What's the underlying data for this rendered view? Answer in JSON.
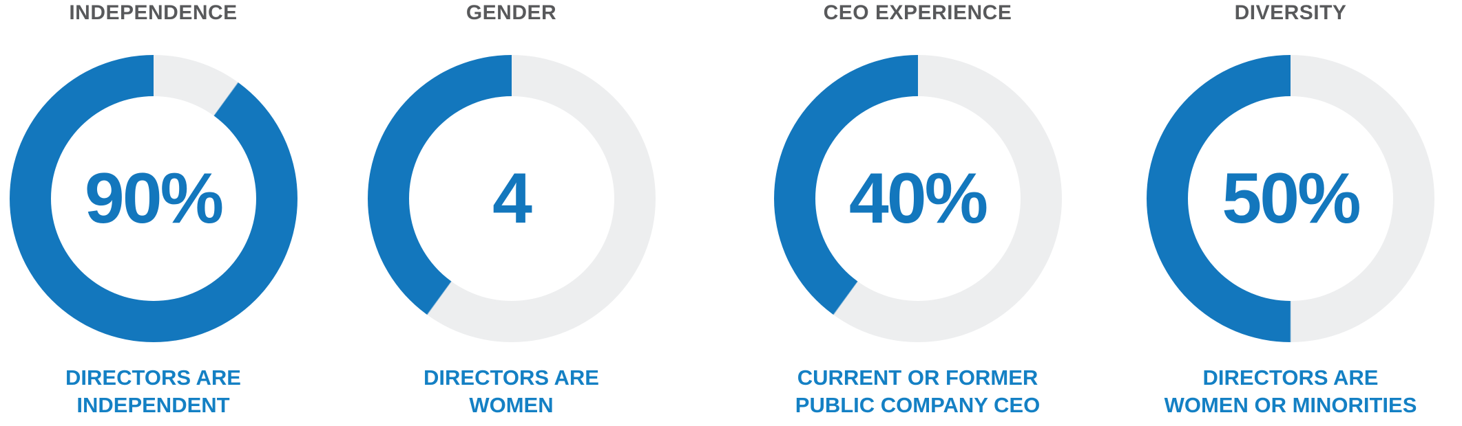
{
  "colors": {
    "blue": "#1377BD",
    "caption_blue": "#1480C4",
    "track": "#EDEEEF",
    "title_gray": "#58595B",
    "background": "#FFFFFF"
  },
  "cards": [
    {
      "title": "INDEPENDENCE",
      "value": "90%",
      "percent": 90,
      "caption_line1": "DIRECTORS ARE",
      "caption_line2": "INDEPENDENT"
    },
    {
      "title": "GENDER",
      "value": "4",
      "percent": 40,
      "caption_line1": "DIRECTORS ARE",
      "caption_line2": "WOMEN"
    },
    {
      "title": "CEO EXPERIENCE",
      "value": "40%",
      "percent": 40,
      "caption_line1": "CURRENT OR FORMER",
      "caption_line2": "PUBLIC COMPANY CEO"
    },
    {
      "title": "DIVERSITY",
      "value": "50%",
      "percent": 50,
      "caption_line1": "DIRECTORS ARE",
      "caption_line2": "WOMEN OR MINORITIES"
    }
  ],
  "chart_data": [
    {
      "type": "pie",
      "subtype": "donut",
      "title": "INDEPENDENCE",
      "center_value": "90%",
      "ring_percent": 90,
      "fill_direction": "counterclockwise-from-top",
      "slices": [
        {
          "label": "DIRECTORS ARE INDEPENDENT",
          "value": 90,
          "color": "#1377BD"
        },
        {
          "label": "remainder",
          "value": 10,
          "color": "#EDEEEF"
        }
      ],
      "annotation": "DIRECTORS ARE INDEPENDENT"
    },
    {
      "type": "pie",
      "subtype": "donut",
      "title": "GENDER",
      "center_value": "4",
      "ring_percent": 40,
      "fill_direction": "counterclockwise-from-top",
      "slices": [
        {
          "label": "DIRECTORS ARE WOMEN",
          "value": 40,
          "color": "#1377BD"
        },
        {
          "label": "remainder",
          "value": 60,
          "color": "#EDEEEF"
        }
      ],
      "annotation": "DIRECTORS ARE WOMEN"
    },
    {
      "type": "pie",
      "subtype": "donut",
      "title": "CEO EXPERIENCE",
      "center_value": "40%",
      "ring_percent": 40,
      "fill_direction": "counterclockwise-from-top",
      "slices": [
        {
          "label": "CURRENT OR FORMER PUBLIC COMPANY CEO",
          "value": 40,
          "color": "#1377BD"
        },
        {
          "label": "remainder",
          "value": 60,
          "color": "#EDEEEF"
        }
      ],
      "annotation": "CURRENT OR FORMER PUBLIC COMPANY CEO"
    },
    {
      "type": "pie",
      "subtype": "donut",
      "title": "DIVERSITY",
      "center_value": "50%",
      "ring_percent": 50,
      "fill_direction": "counterclockwise-from-top",
      "slices": [
        {
          "label": "DIRECTORS ARE WOMEN OR MINORITIES",
          "value": 50,
          "color": "#1377BD"
        },
        {
          "label": "remainder",
          "value": 50,
          "color": "#EDEEEF"
        }
      ],
      "annotation": "DIRECTORS ARE WOMEN OR MINORITIES"
    }
  ]
}
